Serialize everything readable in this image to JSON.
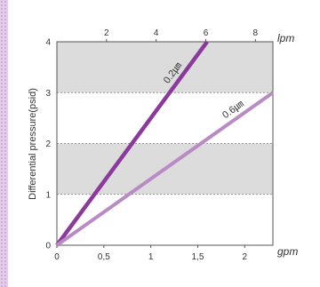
{
  "chart_data": {
    "type": "line",
    "title": "",
    "ylabel": "Differential pressure(psid)",
    "xlabel_bottom_unit": "gpm",
    "xlabel_top_unit": "lpm",
    "xlim": [
      0,
      2.3
    ],
    "ylim": [
      0,
      4
    ],
    "x_ticks_bottom": [
      0,
      0.5,
      1,
      1.5,
      2
    ],
    "x_tick_labels_bottom": [
      "0",
      "0,5",
      "1",
      "1,5",
      "2"
    ],
    "x_ticks_top": [
      2,
      4,
      6,
      8
    ],
    "x_tick_labels_top": [
      "2",
      "4",
      "6",
      "8"
    ],
    "y_ticks": [
      0,
      1,
      2,
      3,
      4
    ],
    "y_tick_labels": [
      "0",
      "1",
      "2",
      "3",
      "4"
    ],
    "bands": [
      [
        1,
        2
      ],
      [
        3,
        4
      ]
    ],
    "series": [
      {
        "name": "0.2㎛",
        "color": "#8b3a9c",
        "x": [
          0,
          1.6
        ],
        "y": [
          0,
          4
        ]
      },
      {
        "name": "0.6㎛",
        "color": "#b98bc4",
        "x": [
          0,
          2.3
        ],
        "y": [
          0,
          3
        ]
      }
    ]
  }
}
